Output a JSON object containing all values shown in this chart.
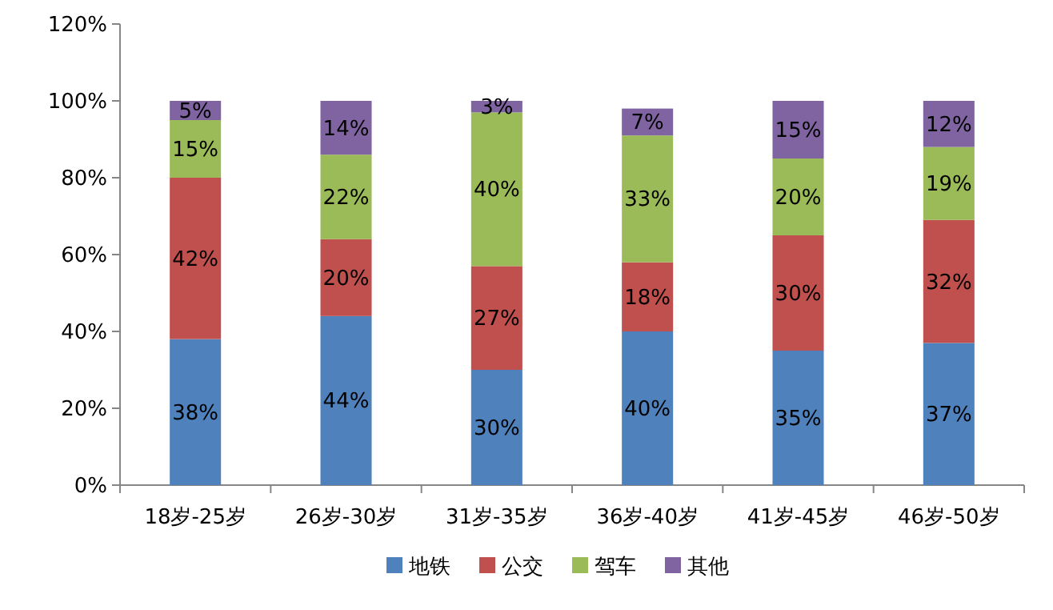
{
  "chart_data": {
    "type": "bar",
    "stacked": true,
    "legend": "bottom",
    "categories": [
      "18岁-25岁",
      "26岁-30岁",
      "31岁-35岁",
      "36岁-40岁",
      "41岁-45岁",
      "46岁-50岁"
    ],
    "ylim": [
      0,
      120
    ],
    "yticks": [
      {
        "value": 0,
        "label": "0%"
      },
      {
        "value": 20,
        "label": "20%"
      },
      {
        "value": 40,
        "label": "40%"
      },
      {
        "value": 60,
        "label": "60%"
      },
      {
        "value": 80,
        "label": "80%"
      },
      {
        "value": 100,
        "label": "100%"
      },
      {
        "value": 120,
        "label": "120%"
      }
    ],
    "series": [
      {
        "name": "地铁",
        "color": "#4f81bd",
        "values": [
          38,
          44,
          30,
          40,
          35,
          37
        ],
        "value_labels": [
          "38%",
          "44%",
          "30%",
          "40%",
          "35%",
          "37%"
        ]
      },
      {
        "name": "公交",
        "color": "#c0504d",
        "values": [
          42,
          20,
          27,
          18,
          30,
          32
        ],
        "value_labels": [
          "42%",
          "20%",
          "27%",
          "18%",
          "30%",
          "32%"
        ]
      },
      {
        "name": "驾车",
        "color": "#9bbb59",
        "values": [
          15,
          22,
          40,
          33,
          20,
          19
        ],
        "value_labels": [
          "15%",
          "22%",
          "40%",
          "33%",
          "20%",
          "19%"
        ]
      },
      {
        "name": "其他",
        "color": "#8064a2",
        "values": [
          5,
          14,
          3,
          7,
          15,
          12
        ],
        "value_labels": [
          "5%",
          "14%",
          "3%",
          "7%",
          "15%",
          "12%"
        ]
      }
    ]
  }
}
